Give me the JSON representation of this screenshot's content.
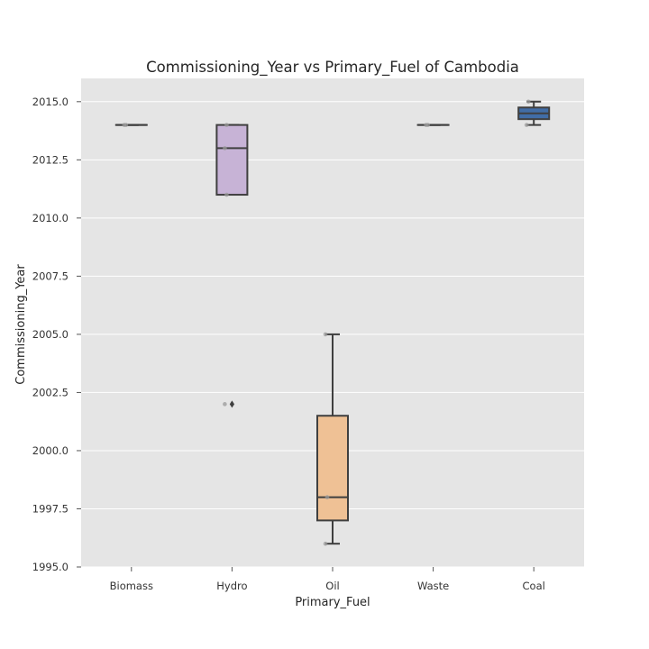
{
  "chart_data": {
    "type": "box",
    "title": "Commissioning_Year vs  Primary_Fuel of Cambodia",
    "xlabel": "Primary_Fuel",
    "ylabel": "Commissioning_Year",
    "ylim": [
      1995.0,
      2016.0
    ],
    "yticks": [
      "1995.0",
      "1997.5",
      "2000.0",
      "2002.5",
      "2005.0",
      "2007.5",
      "2010.0",
      "2012.5",
      "2015.0"
    ],
    "grid": true,
    "categories": [
      "Biomass",
      "Hydro",
      "Oil",
      "Waste",
      "Coal"
    ],
    "boxes": [
      {
        "category": "Biomass",
        "color": "#9ad0a3",
        "whislo": 2014,
        "q1": 2014,
        "med": 2014,
        "q3": 2014,
        "whishi": 2014,
        "fliers": [],
        "points": [
          2014,
          2014
        ]
      },
      {
        "category": "Hydro",
        "color": "#c7b3d6",
        "whislo": 2011,
        "q1": 2011,
        "med": 2013,
        "q3": 2014,
        "whishi": 2014,
        "fliers": [
          2002
        ],
        "points": [
          2002,
          2011,
          2013,
          2014
        ]
      },
      {
        "category": "Oil",
        "color": "#efc195",
        "whislo": 1996,
        "q1": 1997,
        "med": 1998,
        "q3": 2001.5,
        "whishi": 2005,
        "fliers": [],
        "points": [
          1996,
          1998,
          2005
        ]
      },
      {
        "category": "Waste",
        "color": "#f5f5a6",
        "whislo": 2014,
        "q1": 2014,
        "med": 2014,
        "q3": 2014,
        "whishi": 2014,
        "fliers": [],
        "points": [
          2014,
          2014
        ]
      },
      {
        "category": "Coal",
        "color": "#416da6",
        "whislo": 2014,
        "q1": 2014.25,
        "med": 2014.5,
        "q3": 2014.75,
        "whishi": 2015,
        "fliers": [],
        "points": [
          2014,
          2015
        ]
      }
    ]
  }
}
